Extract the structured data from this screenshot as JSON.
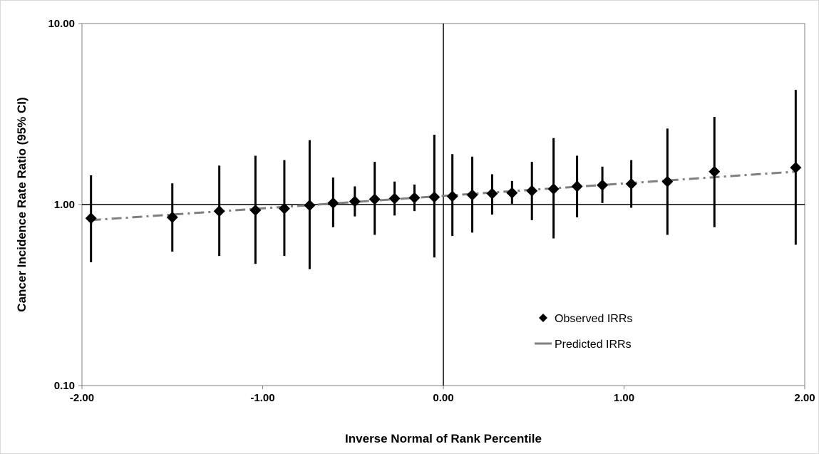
{
  "chart_data": {
    "type": "scatter",
    "xlabel": "Inverse Normal of Rank Percentile",
    "ylabel": "Cancer Incidence Rate Ratio (95% CI)",
    "xlim": [
      -2.0,
      2.0
    ],
    "ylim": [
      0.1,
      10.0
    ],
    "y_scale": "log",
    "x_ticks": [
      "-2.00",
      "-1.00",
      "0.00",
      "1.00",
      "2.00"
    ],
    "y_ticks": [
      "0.10",
      "1.00",
      "10.00"
    ],
    "grid": false,
    "legend_position": "lower-right",
    "series": [
      {
        "name": "Observed IRRs",
        "style": "diamond-markers-with-error-bars",
        "color": "#000000",
        "points": [
          {
            "x": -1.95,
            "y": 0.84,
            "lo": 0.48,
            "hi": 1.45
          },
          {
            "x": -1.5,
            "y": 0.85,
            "lo": 0.55,
            "hi": 1.31
          },
          {
            "x": -1.24,
            "y": 0.92,
            "lo": 0.52,
            "hi": 1.64
          },
          {
            "x": -1.04,
            "y": 0.93,
            "lo": 0.47,
            "hi": 1.86
          },
          {
            "x": -0.88,
            "y": 0.95,
            "lo": 0.52,
            "hi": 1.76
          },
          {
            "x": -0.74,
            "y": 0.99,
            "lo": 0.44,
            "hi": 2.27
          },
          {
            "x": -0.61,
            "y": 1.02,
            "lo": 0.75,
            "hi": 1.41
          },
          {
            "x": -0.49,
            "y": 1.04,
            "lo": 0.86,
            "hi": 1.26
          },
          {
            "x": -0.38,
            "y": 1.07,
            "lo": 0.68,
            "hi": 1.72
          },
          {
            "x": -0.27,
            "y": 1.08,
            "lo": 0.87,
            "hi": 1.34
          },
          {
            "x": -0.16,
            "y": 1.09,
            "lo": 0.92,
            "hi": 1.29
          },
          {
            "x": -0.05,
            "y": 1.1,
            "lo": 0.51,
            "hi": 2.43
          },
          {
            "x": 0.05,
            "y": 1.11,
            "lo": 0.67,
            "hi": 1.9
          },
          {
            "x": 0.16,
            "y": 1.13,
            "lo": 0.7,
            "hi": 1.84
          },
          {
            "x": 0.27,
            "y": 1.15,
            "lo": 0.88,
            "hi": 1.47
          },
          {
            "x": 0.38,
            "y": 1.16,
            "lo": 1.01,
            "hi": 1.35
          },
          {
            "x": 0.49,
            "y": 1.19,
            "lo": 0.82,
            "hi": 1.72
          },
          {
            "x": 0.61,
            "y": 1.22,
            "lo": 0.65,
            "hi": 2.33
          },
          {
            "x": 0.74,
            "y": 1.26,
            "lo": 0.85,
            "hi": 1.86
          },
          {
            "x": 0.88,
            "y": 1.28,
            "lo": 1.02,
            "hi": 1.62
          },
          {
            "x": 1.04,
            "y": 1.3,
            "lo": 0.96,
            "hi": 1.76
          },
          {
            "x": 1.24,
            "y": 1.34,
            "lo": 0.68,
            "hi": 2.63
          },
          {
            "x": 1.5,
            "y": 1.52,
            "lo": 0.75,
            "hi": 3.05
          },
          {
            "x": 1.95,
            "y": 1.6,
            "lo": 0.6,
            "hi": 4.3
          }
        ]
      },
      {
        "name": "Predicted IRRs",
        "style": "dash-dot-line",
        "color": "#808080",
        "x": [
          -1.95,
          1.95
        ],
        "y": [
          0.82,
          1.52
        ]
      }
    ]
  }
}
